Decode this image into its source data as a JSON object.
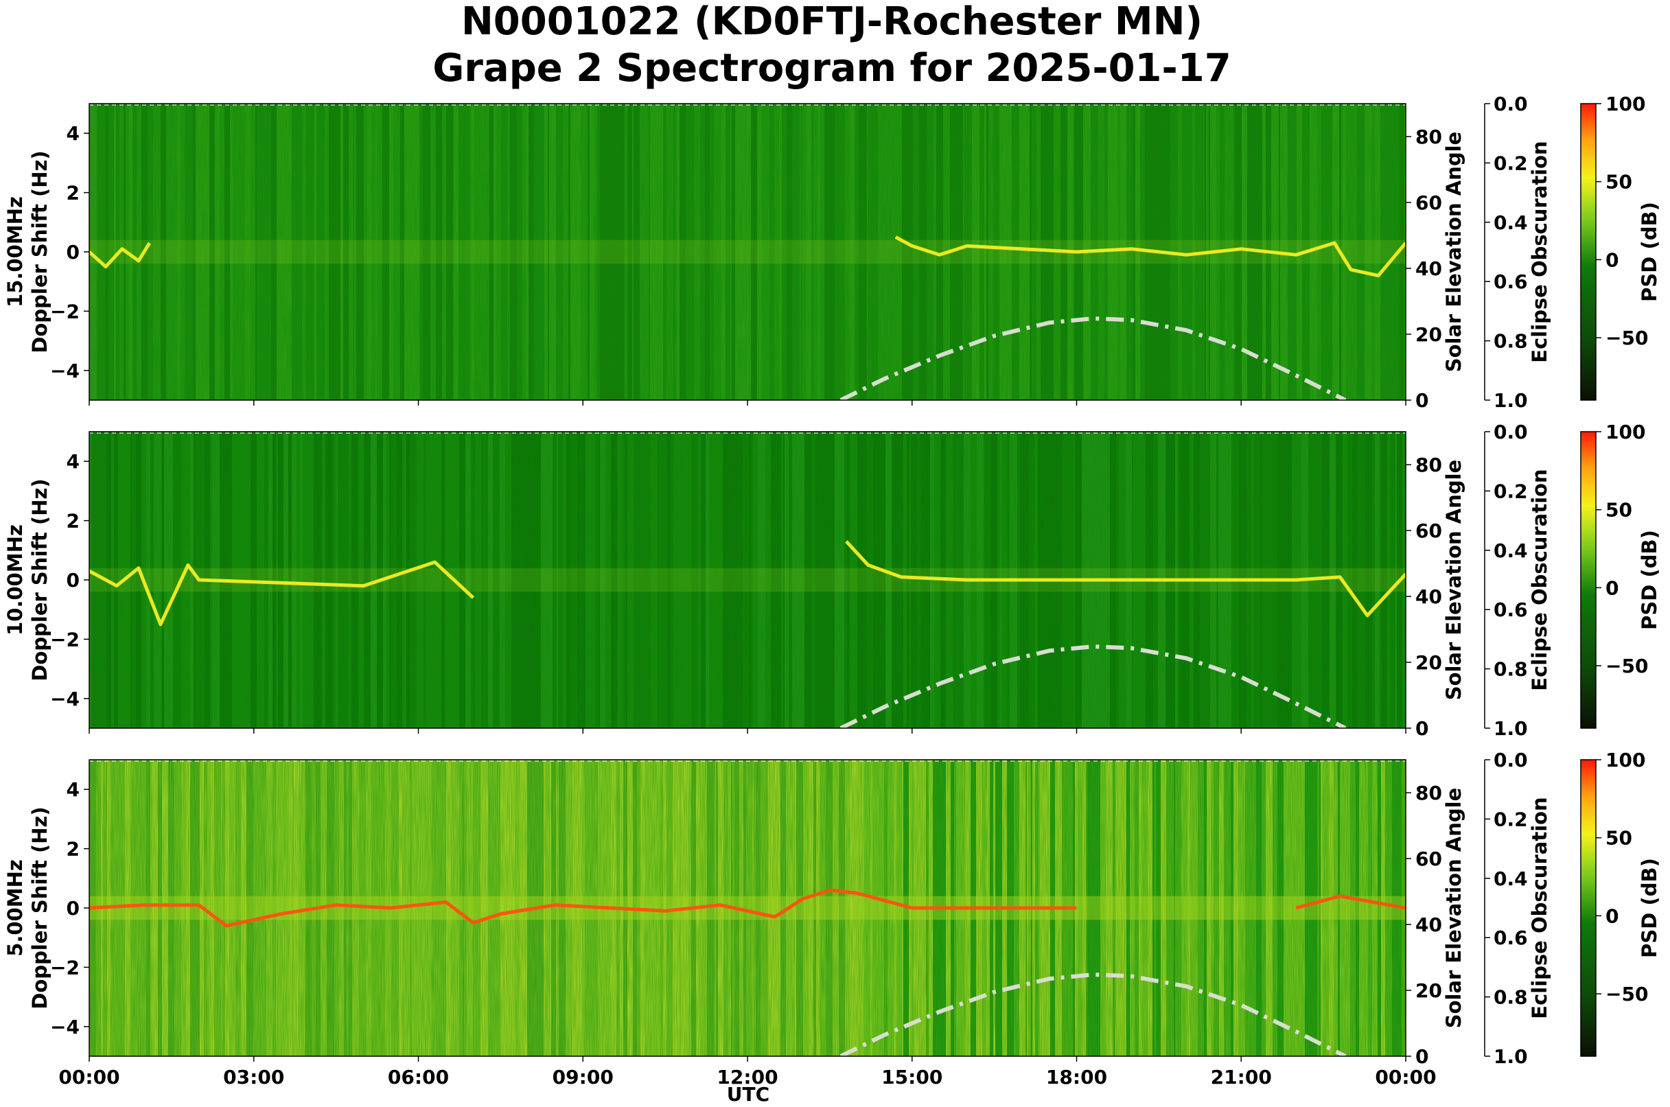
{
  "title_line1": "N0001022 (KD0FTJ-Rochester MN)",
  "title_line2": "Grape 2 Spectrogram for 2025-01-17",
  "chart_data": {
    "type": "heatmap",
    "xlabel": "UTC",
    "x_ticks": [
      "00:00",
      "03:00",
      "06:00",
      "09:00",
      "12:00",
      "15:00",
      "18:00",
      "21:00",
      "00:00"
    ],
    "xlim_hours": [
      0,
      24
    ],
    "doppler_ticks": [
      -4,
      -2,
      0,
      2,
      4
    ],
    "ylim_hz": [
      -5,
      5
    ],
    "elevation_label": "Solar Elevation Angle",
    "elevation_ticks": [
      0,
      20,
      40,
      60,
      80
    ],
    "elevation_lim": [
      0,
      90
    ],
    "eclipse_label": "Eclipse Obscuration",
    "eclipse_ticks": [
      "0.0",
      "0.2",
      "0.4",
      "0.6",
      "0.8",
      "1.0"
    ],
    "eclipse_lim": [
      0,
      1
    ],
    "colorbar_label": "PSD (dB)",
    "colorbar_ticks": [
      100,
      50,
      0,
      -50
    ],
    "colorbar_lim": [
      -90,
      100
    ],
    "colors": {
      "low": "#0b0f05",
      "mid": "#107a0b",
      "high_green": "#74c81c",
      "yellow": "#f4f21a",
      "red": "#ff1a0a",
      "elevation_curve": "#d9ddd0"
    },
    "solar_elevation": {
      "hours": [
        13.7,
        14.5,
        15.5,
        16.5,
        17.5,
        18.3,
        19.0,
        20.0,
        21.0,
        22.0,
        22.9
      ],
      "degrees": [
        0,
        6.5,
        13.5,
        19.5,
        23.5,
        24.8,
        24.3,
        21.2,
        15.5,
        7.5,
        0
      ]
    },
    "panels": [
      {
        "freq_label": "15.00MHz",
        "ylabel": "Doppler Shift (Hz)",
        "trace": {
          "hours": [
            0,
            0.3,
            0.6,
            0.9,
            1.1,
            14.7,
            15.0,
            15.5,
            16.0,
            17.0,
            18.0,
            19.0,
            20.0,
            21.0,
            22.0,
            22.7,
            23.0,
            23.5,
            24.0
          ],
          "doppler": [
            0,
            -0.5,
            0.1,
            -0.3,
            0.3,
            0.5,
            0.2,
            -0.1,
            0.2,
            0.1,
            0,
            0.1,
            -0.1,
            0.1,
            -0.1,
            0.3,
            -0.6,
            -0.8,
            0.3
          ]
        }
      },
      {
        "freq_label": "10.00MHz",
        "ylabel": "Doppler Shift (Hz)",
        "trace": {
          "hours": [
            0,
            0.5,
            0.9,
            1.3,
            1.8,
            2.0,
            3.5,
            5.0,
            6.3,
            7.0,
            13.8,
            14.2,
            14.8,
            16.0,
            18.0,
            20.0,
            22.0,
            22.8,
            23.3,
            24.0
          ],
          "doppler": [
            0.3,
            -0.2,
            0.4,
            -1.5,
            0.5,
            0,
            -0.1,
            -0.2,
            0.6,
            -0.6,
            1.3,
            0.5,
            0.1,
            0,
            0,
            0,
            0,
            0.1,
            -1.2,
            0.2
          ]
        }
      },
      {
        "freq_label": "5.00MHz",
        "ylabel": "Doppler Shift (Hz)",
        "trace": {
          "hours": [
            0,
            1.0,
            2.0,
            2.5,
            3.5,
            4.5,
            5.5,
            6.5,
            7.0,
            7.5,
            8.5,
            9.5,
            10.5,
            11.5,
            12.5,
            13.0,
            13.5,
            14.0,
            15.0,
            18.0,
            22.0,
            22.8,
            24.0
          ],
          "doppler": [
            0,
            0.1,
            0.1,
            -0.6,
            -0.2,
            0.1,
            0,
            0.2,
            -0.5,
            -0.2,
            0.1,
            0,
            -0.1,
            0.1,
            -0.3,
            0.3,
            0.6,
            0.5,
            0,
            0,
            0,
            0.4,
            0
          ]
        }
      }
    ]
  }
}
